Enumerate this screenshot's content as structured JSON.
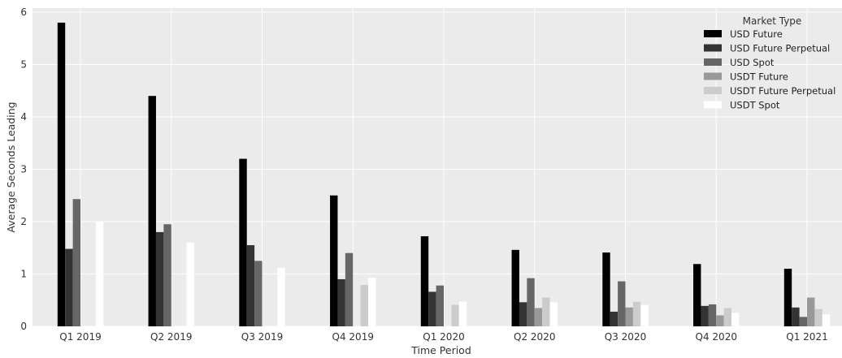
{
  "chart_data": {
    "type": "bar",
    "title": "",
    "xlabel": "Time Period",
    "ylabel": "Average Seconds Leading",
    "ylim": [
      0,
      6
    ],
    "yticks": [
      0,
      1,
      2,
      3,
      4,
      5,
      6
    ],
    "grid": true,
    "legend": {
      "title": "Market Type",
      "placement": "top-right"
    },
    "categories": [
      "Q1 2019",
      "Q2 2019",
      "Q3 2019",
      "Q4 2019",
      "Q1 2020",
      "Q2 2020",
      "Q3 2020",
      "Q4 2020",
      "Q1 2021"
    ],
    "series": [
      {
        "name": "USD Future",
        "color": "#000000",
        "values": [
          5.8,
          4.4,
          3.2,
          2.5,
          1.72,
          1.46,
          1.41,
          1.19,
          1.1
        ]
      },
      {
        "name": "USD Future Perpetual",
        "color": "#333333",
        "values": [
          1.48,
          1.8,
          1.55,
          0.9,
          0.66,
          0.46,
          0.28,
          0.39,
          0.36
        ]
      },
      {
        "name": "USD Spot",
        "color": "#666666",
        "values": [
          2.43,
          1.95,
          1.25,
          1.4,
          0.78,
          0.92,
          0.86,
          0.42,
          0.18
        ]
      },
      {
        "name": "USDT Future",
        "color": "#999999",
        "values": [
          0,
          0,
          0,
          0,
          0,
          0.35,
          0.36,
          0.21,
          0.55
        ]
      },
      {
        "name": "USDT Future Perpetual",
        "color": "#cccccc",
        "values": [
          0,
          0,
          0,
          0.79,
          0.41,
          0.55,
          0.47,
          0.35,
          0.33
        ]
      },
      {
        "name": "USDT Spot",
        "color": "#ffffff",
        "values": [
          2.0,
          1.6,
          1.12,
          0.93,
          0.47,
          0.46,
          0.41,
          0.26,
          0.23
        ]
      }
    ]
  }
}
